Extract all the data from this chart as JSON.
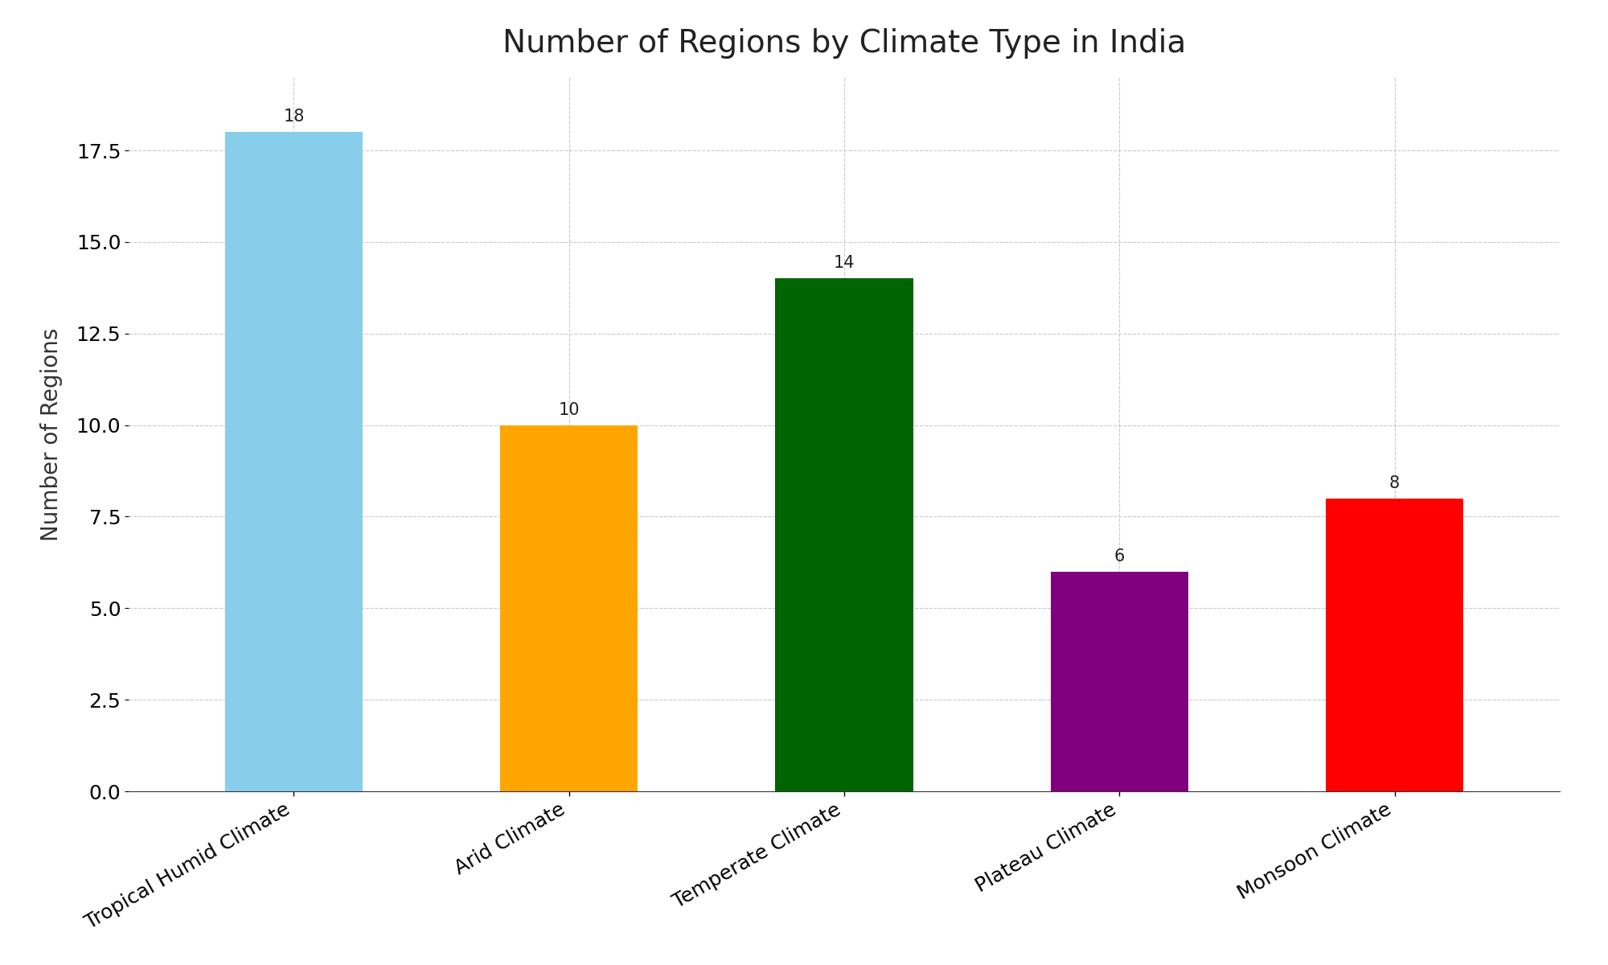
{
  "title": "Number of Regions by Climate Type in India",
  "categories": [
    "Tropical Humid Climate",
    "Arid Climate",
    "Temperate Climate",
    "Plateau Climate",
    "Monsoon Climate"
  ],
  "values": [
    18,
    10,
    14,
    6,
    8
  ],
  "bar_colors": [
    "#87CEEB",
    "#FFA500",
    "#006400",
    "#800080",
    "#FF0000"
  ],
  "ylabel": "Number of Regions",
  "ylim": [
    0,
    19.5
  ],
  "title_fontsize": 28,
  "label_fontsize": 20,
  "tick_fontsize": 18,
  "annotation_fontsize": 15,
  "background_color": "#FFFFFF",
  "grid_color": "#BBBBBB",
  "grid_linestyle": "--",
  "grid_alpha": 0.8,
  "bar_width": 0.5
}
